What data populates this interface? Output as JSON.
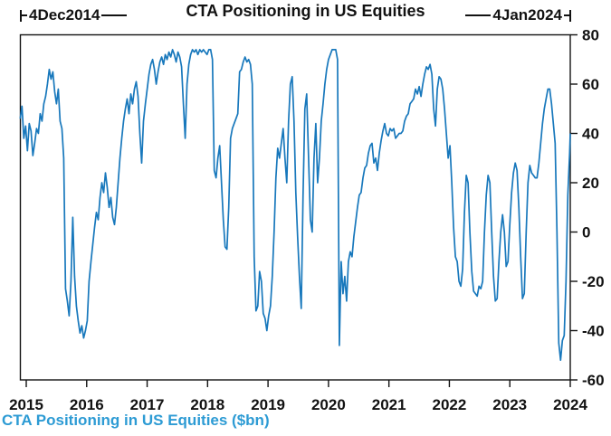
{
  "figure": {
    "title": "CTA Positioning in US Equities",
    "footer": "CTA Positioning in US Equities ($bn)",
    "start_label": "4Dec2014",
    "end_label": "4Jan2024"
  },
  "chart_data": {
    "type": "line",
    "title": "CTA Positioning in US Equities",
    "series_name": "CTA Positioning in US Equities ($bn)",
    "x_unit": "year",
    "x_start": 2014.9,
    "x_step": 0.03,
    "xlim": [
      2014.9,
      2024.02
    ],
    "ylim": [
      -60,
      80
    ],
    "x_ticks": [
      2015,
      2016,
      2017,
      2018,
      2019,
      2020,
      2021,
      2022,
      2023,
      2024
    ],
    "y_ticks": [
      80,
      60,
      40,
      20,
      0,
      -20,
      -40,
      -60
    ],
    "grid": false,
    "legend_position": "none",
    "line_color": "#1878bc",
    "footer_color": "#2d9bd4",
    "axis_color": "#121212",
    "values": [
      46,
      51,
      38,
      43,
      33,
      44,
      41,
      31,
      36,
      42,
      40,
      48,
      45,
      52,
      55,
      60,
      66,
      62,
      65,
      57,
      52,
      58,
      45,
      42,
      30,
      -23,
      -28,
      -34,
      -20,
      6,
      -18,
      -30,
      -36,
      -41,
      -38,
      -43,
      -40,
      -36,
      -20,
      -12,
      -5,
      2,
      8,
      5,
      14,
      20,
      16,
      24,
      18,
      10,
      14,
      6,
      3,
      10,
      20,
      30,
      38,
      45,
      50,
      54,
      48,
      56,
      52,
      58,
      61,
      55,
      40,
      28,
      45,
      52,
      58,
      64,
      68,
      70,
      66,
      60,
      65,
      69,
      71,
      68,
      72,
      70,
      73,
      71,
      74,
      72,
      69,
      73,
      71,
      67,
      52,
      38,
      60,
      68,
      72,
      74,
      73,
      74,
      72,
      74,
      73,
      74,
      73,
      72,
      74,
      74,
      70,
      25,
      22,
      30,
      35,
      20,
      5,
      -6,
      -7,
      10,
      38,
      42,
      44,
      46,
      48,
      65,
      66,
      69,
      71,
      69,
      70,
      68,
      60,
      -10,
      -32,
      -30,
      -16,
      -20,
      -33,
      -35,
      -40,
      -34,
      -30,
      -18,
      0,
      22,
      34,
      30,
      36,
      42,
      30,
      20,
      45,
      60,
      63,
      45,
      16,
      -2,
      -18,
      -31,
      15,
      50,
      56,
      30,
      5,
      0,
      30,
      44,
      20,
      30,
      45,
      52,
      60,
      66,
      70,
      72,
      74,
      74,
      74,
      70,
      -46,
      -12,
      -25,
      -18,
      -28,
      -12,
      -8,
      -10,
      -2,
      4,
      10,
      15,
      16,
      22,
      26,
      27,
      32,
      35,
      36,
      28,
      30,
      25,
      32,
      37,
      41,
      44,
      40,
      39,
      42,
      41,
      42,
      38,
      39,
      40,
      40,
      41,
      45,
      47,
      48,
      52,
      53,
      54,
      58,
      56,
      59,
      55,
      60,
      64,
      67,
      66,
      68,
      64,
      50,
      43,
      58,
      63,
      62,
      58,
      50,
      40,
      30,
      35,
      20,
      2,
      -10,
      -12,
      -20,
      -22,
      -15,
      8,
      23,
      20,
      0,
      -16,
      -24,
      -25,
      -26,
      -22,
      -23,
      -20,
      0,
      15,
      23,
      20,
      0,
      -18,
      -28,
      -27,
      -12,
      0,
      7,
      0,
      -14,
      -12,
      3,
      16,
      24,
      28,
      25,
      10,
      -10,
      -27,
      -25,
      0,
      20,
      27,
      24,
      23,
      22,
      22,
      28,
      36,
      44,
      50,
      54,
      58,
      58,
      52,
      44,
      36,
      0,
      -45,
      -52,
      -44,
      -42,
      -20,
      15,
      32,
      40
    ]
  }
}
